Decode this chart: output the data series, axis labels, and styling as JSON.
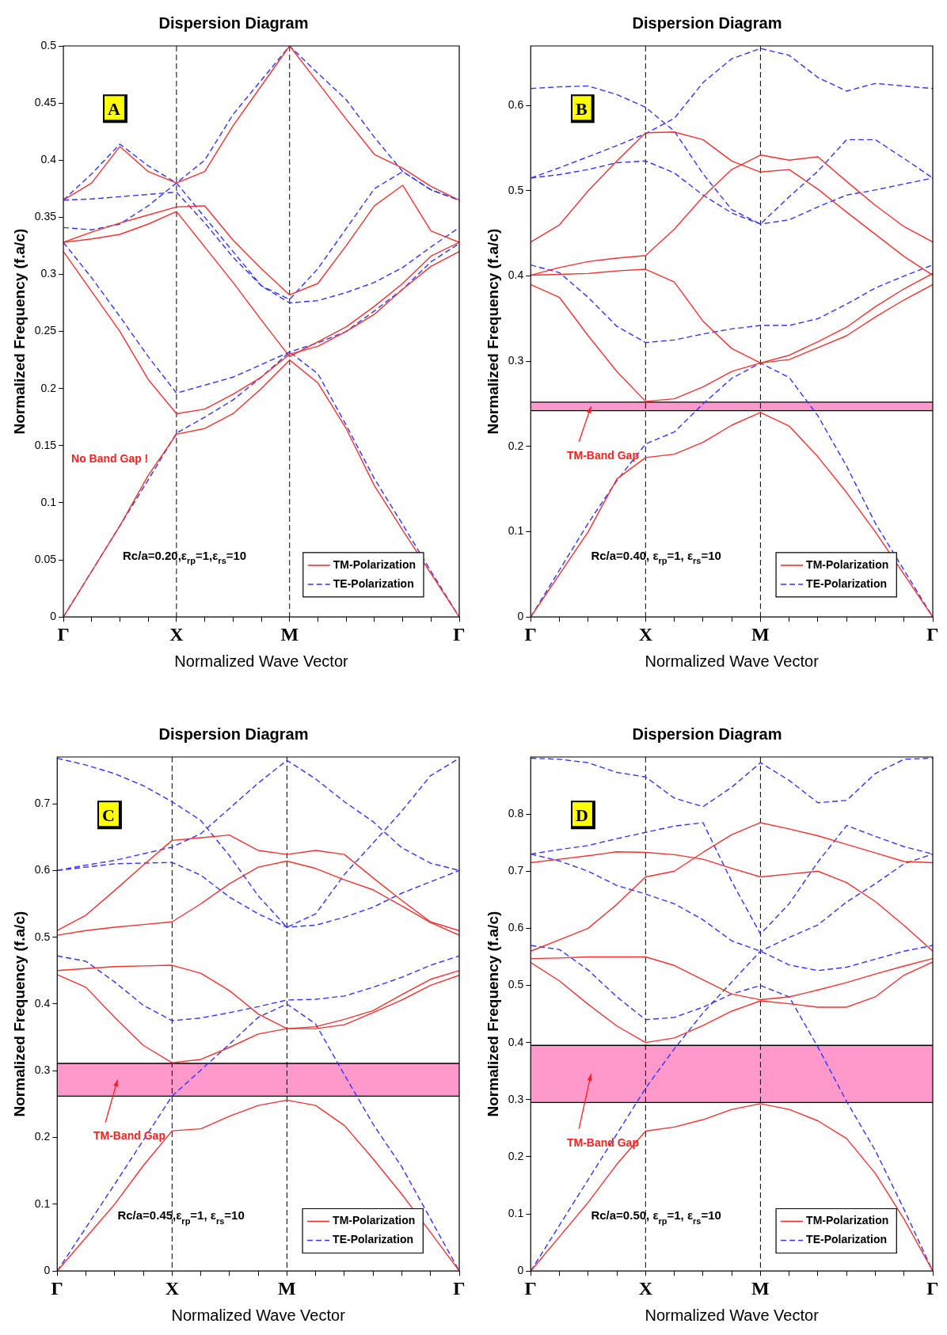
{
  "chart_data": [
    {
      "type": "line",
      "title": "Dispersion Diagram",
      "xlabel": "Normalized Wave Vector",
      "ylabel": "Normalized Frequency (f.a/c)",
      "categories": [
        "Γ",
        null,
        null,
        null,
        "X",
        null,
        null,
        null,
        "M",
        null,
        null,
        null,
        null,
        null,
        "Γ"
      ],
      "ylim": [
        0,
        0.5
      ],
      "yticks": [
        0,
        0.05,
        0.1,
        0.15,
        0.2,
        0.25,
        0.3,
        0.35,
        0.4,
        0.45,
        0.5
      ],
      "grid": false,
      "legend": "bottom right",
      "marker": "none",
      "ref_lines": [
        {
          "axis": "x",
          "value": "X",
          "color": "#000000",
          "line_style": "dashed"
        },
        {
          "axis": "x",
          "value": "M",
          "color": "#000000",
          "line_style": "dashed"
        }
      ],
      "annotations": [
        "A",
        "Rc/a=0.20,ε$_{rp}$=1,ε$_{rs}$=10",
        "No Band Gap !"
      ],
      "series": [
        {
          "name": "TM-Polarization",
          "color": "#ee3333",
          "line_style": "solid",
          "values": [
            0,
            0.04,
            0.08,
            0.124,
            0.16,
            0.165,
            0.178,
            0.2,
            0.225,
            0.205,
            0.165,
            0.115,
            0.076,
            0.038,
            0
          ]
        },
        {
          "color": "#ee3333",
          "line_style": "solid",
          "values": [
            0.32,
            0.285,
            0.25,
            0.208,
            0.178,
            0.182,
            0.195,
            0.21,
            0.23,
            0.237,
            0.25,
            0.265,
            0.287,
            0.307,
            0.32
          ]
        },
        {
          "color": "#ee3333",
          "line_style": "solid",
          "values": [
            0.328,
            0.331,
            0.335,
            0.344,
            0.355,
            0.324,
            0.293,
            0.26,
            0.228,
            0.241,
            0.254,
            0.272,
            0.292,
            0.316,
            0.328
          ]
        },
        {
          "color": "#ee3333",
          "line_style": "solid",
          "values": [
            0.328,
            0.337,
            0.345,
            0.352,
            0.359,
            0.36,
            0.33,
            0.305,
            0.282,
            0.292,
            0.325,
            0.36,
            0.378,
            0.338,
            0.328
          ]
        },
        {
          "color": "#ee3333",
          "line_style": "solid",
          "values": [
            0.365,
            0.38,
            0.412,
            0.39,
            0.38,
            0.39,
            0.43,
            0.465,
            0.5,
            0.468,
            0.436,
            0.405,
            0.393,
            0.377,
            0.365
          ]
        },
        {
          "name": "TE-Polarization",
          "color": "#3333ff",
          "line_style": "dashed",
          "values": [
            0,
            0.04,
            0.08,
            0.12,
            0.161,
            0.175,
            0.19,
            0.21,
            0.232,
            0.213,
            0.168,
            0.121,
            0.081,
            0.04,
            0
          ]
        },
        {
          "color": "#3333ff",
          "line_style": "dashed",
          "values": [
            0.328,
            0.297,
            0.263,
            0.228,
            0.196,
            0.203,
            0.21,
            0.221,
            0.232,
            0.24,
            0.25,
            0.268,
            0.287,
            0.311,
            0.327
          ]
        },
        {
          "color": "#3333ff",
          "line_style": "dashed",
          "values": [
            0.341,
            0.339,
            0.344,
            0.36,
            0.38,
            0.4,
            0.44,
            0.47,
            0.5,
            0.476,
            0.453,
            0.42,
            0.39,
            0.374,
            0.365
          ]
        },
        {
          "color": "#3333ff",
          "line_style": "dashed",
          "values": [
            0.365,
            0.388,
            0.414,
            0.395,
            0.38,
            0.35,
            0.32,
            0.29,
            0.278,
            0.305,
            0.34,
            0.375,
            0.39,
            0.374,
            0.365
          ]
        },
        {
          "color": "#3333ff",
          "line_style": "dashed",
          "values": [
            0.365,
            0.366,
            0.368,
            0.37,
            0.372,
            0.345,
            0.315,
            0.29,
            0.275,
            0.277,
            0.284,
            0.293,
            0.306,
            0.324,
            0.341
          ]
        }
      ]
    },
    {
      "type": "line",
      "title": "Dispersion Diagram",
      "xlabel": "Normalized Wave Vector",
      "ylabel": "Normalized Frequency (f.a/c)",
      "categories": [
        "Γ",
        null,
        null,
        null,
        "X",
        null,
        null,
        null,
        "M",
        null,
        null,
        null,
        null,
        null,
        "Γ"
      ],
      "ylim": [
        0,
        0.67
      ],
      "yticks": [
        0,
        0.1,
        0.2,
        0.3,
        0.4,
        0.5,
        0.6
      ],
      "grid": false,
      "legend": "bottom right",
      "marker": "none",
      "ref_lines": [
        {
          "axis": "x",
          "value": "X",
          "color": "#000000",
          "line_style": "dashed"
        },
        {
          "axis": "x",
          "value": "M",
          "color": "#000000",
          "line_style": "dashed"
        },
        {
          "axis": "y",
          "value": 0.242,
          "color": "#000000",
          "line_style": "solid"
        },
        {
          "axis": "y",
          "value": 0.252,
          "color": "#000000",
          "line_style": "solid"
        }
      ],
      "bands": [
        {
          "axis": "y",
          "from": 0.242,
          "to": 0.252,
          "label": "TM-Band Gap",
          "color": "#ff99cc"
        }
      ],
      "annotations": [
        "B",
        "Rc/a=0.40, ε$_{rp}$=1, ε$_{rs}$=10"
      ],
      "series": [
        {
          "name": "TM-Polarization",
          "color": "#ee3333",
          "line_style": "solid",
          "values": [
            0,
            0.05,
            0.1,
            0.162,
            0.187,
            0.191,
            0.205,
            0.225,
            0.24,
            0.224,
            0.188,
            0.146,
            0.1,
            0.05,
            0
          ]
        },
        {
          "color": "#ee3333",
          "line_style": "solid",
          "values": [
            0.39,
            0.375,
            0.33,
            0.288,
            0.253,
            0.256,
            0.27,
            0.288,
            0.298,
            0.302,
            0.316,
            0.33,
            0.352,
            0.372,
            0.39
          ]
        },
        {
          "color": "#ee3333",
          "line_style": "solid",
          "values": [
            0.401,
            0.402,
            0.403,
            0.406,
            0.408,
            0.393,
            0.347,
            0.315,
            0.298,
            0.307,
            0.323,
            0.34,
            0.364,
            0.385,
            0.403
          ]
        },
        {
          "color": "#ee3333",
          "line_style": "solid",
          "values": [
            0.401,
            0.41,
            0.417,
            0.421,
            0.424,
            0.455,
            0.493,
            0.525,
            0.542,
            0.536,
            0.54,
            0.511,
            0.483,
            0.458,
            0.44
          ]
        },
        {
          "color": "#ee3333",
          "line_style": "solid",
          "values": [
            0.44,
            0.46,
            0.5,
            0.535,
            0.568,
            0.569,
            0.56,
            0.535,
            0.522,
            0.525,
            0.502,
            0.475,
            0.449,
            0.423,
            0.401
          ]
        },
        {
          "name": "TE-Polarization",
          "color": "#3333ff",
          "line_style": "dashed",
          "values": [
            0,
            0.055,
            0.11,
            0.16,
            0.203,
            0.217,
            0.25,
            0.28,
            0.298,
            0.281,
            0.236,
            0.177,
            0.11,
            0.055,
            0
          ]
        },
        {
          "color": "#3333ff",
          "line_style": "dashed",
          "values": [
            0.413,
            0.404,
            0.375,
            0.341,
            0.322,
            0.325,
            0.332,
            0.338,
            0.342,
            0.342,
            0.35,
            0.367,
            0.386,
            0.4,
            0.413
          ]
        },
        {
          "color": "#3333ff",
          "line_style": "dashed",
          "values": [
            0.515,
            0.519,
            0.525,
            0.533,
            0.535,
            0.521,
            0.495,
            0.474,
            0.461,
            0.466,
            0.481,
            0.495,
            0.501,
            0.508,
            0.515
          ]
        },
        {
          "color": "#3333ff",
          "line_style": "dashed",
          "values": [
            0.515,
            0.527,
            0.54,
            0.553,
            0.567,
            0.585,
            0.627,
            0.655,
            0.667,
            0.659,
            0.633,
            0.617,
            0.626,
            0.623,
            0.62
          ]
        },
        {
          "color": "#3333ff",
          "line_style": "dashed",
          "values": [
            0.62,
            0.622,
            0.623,
            0.613,
            0.598,
            0.57,
            0.52,
            0.478,
            0.461,
            0.493,
            0.523,
            0.56,
            0.56,
            0.538,
            0.515
          ]
        }
      ]
    },
    {
      "type": "line",
      "title": "Dispersion Diagram",
      "xlabel": "Normalized Wave Vector",
      "ylabel": "Normalized Frequency (f.a/c)",
      "categories": [
        "Γ",
        null,
        null,
        null,
        "X",
        null,
        null,
        null,
        "M",
        null,
        null,
        null,
        null,
        null,
        "Γ"
      ],
      "ylim": [
        0,
        0.77
      ],
      "yticks": [
        0,
        0.1,
        0.2,
        0.3,
        0.4,
        0.5,
        0.6,
        0.7
      ],
      "grid": false,
      "legend": "bottom right",
      "marker": "none",
      "ref_lines": [
        {
          "axis": "x",
          "value": "X",
          "color": "#000000",
          "line_style": "dashed"
        },
        {
          "axis": "x",
          "value": "M",
          "color": "#000000",
          "line_style": "dashed"
        },
        {
          "axis": "y",
          "value": 0.262,
          "color": "#000000",
          "line_style": "solid"
        },
        {
          "axis": "y",
          "value": 0.311,
          "color": "#000000",
          "line_style": "solid"
        }
      ],
      "bands": [
        {
          "axis": "y",
          "from": 0.262,
          "to": 0.311,
          "label": "TM-Band Gap",
          "color": "#ff99cc"
        }
      ],
      "annotations": [
        "C",
        "Rc/a=0.45,ε$_{rp}$=1, ε$_{rs}$=10"
      ],
      "series": [
        {
          "name": "TM-Polarization",
          "color": "#ee3333",
          "line_style": "solid",
          "values": [
            0,
            0.05,
            0.1,
            0.158,
            0.21,
            0.213,
            0.232,
            0.248,
            0.256,
            0.248,
            0.218,
            0.168,
            0.115,
            0.058,
            0
          ]
        },
        {
          "color": "#ee3333",
          "line_style": "solid",
          "values": [
            0.444,
            0.425,
            0.38,
            0.338,
            0.312,
            0.317,
            0.335,
            0.355,
            0.363,
            0.363,
            0.369,
            0.387,
            0.406,
            0.428,
            0.443
          ]
        },
        {
          "color": "#ee3333",
          "line_style": "solid",
          "values": [
            0.45,
            0.453,
            0.456,
            0.457,
            0.458,
            0.446,
            0.42,
            0.385,
            0.363,
            0.366,
            0.377,
            0.39,
            0.414,
            0.437,
            0.45
          ]
        },
        {
          "color": "#ee3333",
          "line_style": "solid",
          "values": [
            0.503,
            0.51,
            0.515,
            0.519,
            0.523,
            0.55,
            0.58,
            0.605,
            0.614,
            0.603,
            0.586,
            0.571,
            0.547,
            0.522,
            0.503
          ]
        },
        {
          "color": "#ee3333",
          "line_style": "solid",
          "values": [
            0.51,
            0.533,
            0.57,
            0.608,
            0.645,
            0.649,
            0.653,
            0.63,
            0.624,
            0.63,
            0.624,
            0.589,
            0.555,
            0.523,
            0.51
          ]
        },
        {
          "name": "TE-Polarization",
          "color": "#3333ff",
          "line_style": "dashed",
          "values": [
            0,
            0.065,
            0.13,
            0.196,
            0.262,
            0.301,
            0.34,
            0.38,
            0.4,
            0.37,
            0.294,
            0.22,
            0.156,
            0.078,
            0
          ]
        },
        {
          "color": "#3333ff",
          "line_style": "dashed",
          "values": [
            0.472,
            0.464,
            0.433,
            0.398,
            0.375,
            0.379,
            0.387,
            0.396,
            0.406,
            0.407,
            0.412,
            0.425,
            0.44,
            0.458,
            0.472
          ]
        },
        {
          "color": "#3333ff",
          "line_style": "dashed",
          "values": [
            0.6,
            0.605,
            0.61,
            0.611,
            0.612,
            0.593,
            0.56,
            0.535,
            0.515,
            0.518,
            0.53,
            0.545,
            0.566,
            0.583,
            0.6
          ]
        },
        {
          "color": "#3333ff",
          "line_style": "dashed",
          "values": [
            0.6,
            0.608,
            0.615,
            0.625,
            0.635,
            0.655,
            0.693,
            0.731,
            0.765,
            0.737,
            0.703,
            0.673,
            0.634,
            0.611,
            0.6
          ]
        },
        {
          "color": "#3333ff",
          "line_style": "dashed",
          "values": [
            0.768,
            0.758,
            0.745,
            0.727,
            0.703,
            0.675,
            0.622,
            0.562,
            0.515,
            0.535,
            0.594,
            0.641,
            0.689,
            0.742,
            0.768
          ]
        }
      ]
    },
    {
      "type": "line",
      "title": "Dispersion Diagram",
      "xlabel": "Normalized Wave Vector",
      "ylabel": "Normalized Frequency (f.a/c)",
      "categories": [
        "Γ",
        null,
        null,
        null,
        "X",
        null,
        null,
        null,
        "M",
        null,
        null,
        null,
        null,
        null,
        "Γ"
      ],
      "ylim": [
        0,
        0.9
      ],
      "yticks": [
        0,
        0.1,
        0.2,
        0.3,
        0.4,
        0.5,
        0.6,
        0.7,
        0.8
      ],
      "grid": false,
      "legend": "bottom right",
      "marker": "none",
      "ref_lines": [
        {
          "axis": "x",
          "value": "X",
          "color": "#000000",
          "line_style": "dashed"
        },
        {
          "axis": "x",
          "value": "M",
          "color": "#000000",
          "line_style": "dashed"
        },
        {
          "axis": "y",
          "value": 0.295,
          "color": "#000000",
          "line_style": "solid"
        },
        {
          "axis": "y",
          "value": 0.395,
          "color": "#000000",
          "line_style": "solid"
        }
      ],
      "bands": [
        {
          "axis": "y",
          "from": 0.295,
          "to": 0.395,
          "label": "TM-Band Gap",
          "color": "#ff99cc"
        }
      ],
      "annotations": [
        "D",
        "Rc/a=0.50, ε$_{rp}$=1, ε$_{rs}$=10"
      ],
      "series": [
        {
          "name": "TM-Polarization",
          "color": "#ee3333",
          "line_style": "solid",
          "values": [
            0,
            0.06,
            0.12,
            0.187,
            0.245,
            0.252,
            0.265,
            0.283,
            0.293,
            0.283,
            0.263,
            0.232,
            0.171,
            0.091,
            0
          ]
        },
        {
          "color": "#ee3333",
          "line_style": "solid",
          "values": [
            0.54,
            0.508,
            0.467,
            0.429,
            0.4,
            0.408,
            0.43,
            0.455,
            0.473,
            0.468,
            0.462,
            0.462,
            0.48,
            0.518,
            0.541
          ]
        },
        {
          "color": "#ee3333",
          "line_style": "solid",
          "values": [
            0.547,
            0.548,
            0.55,
            0.55,
            0.55,
            0.535,
            0.51,
            0.485,
            0.475,
            0.48,
            0.492,
            0.505,
            0.52,
            0.534,
            0.547
          ]
        },
        {
          "color": "#ee3333",
          "line_style": "solid",
          "values": [
            0.56,
            0.58,
            0.6,
            0.642,
            0.69,
            0.7,
            0.733,
            0.764,
            0.785,
            0.774,
            0.762,
            0.747,
            0.732,
            0.717,
            0.715
          ]
        },
        {
          "color": "#ee3333",
          "line_style": "solid",
          "values": [
            0.715,
            0.721,
            0.727,
            0.734,
            0.733,
            0.729,
            0.721,
            0.705,
            0.69,
            0.695,
            0.7,
            0.68,
            0.647,
            0.605,
            0.56
          ]
        },
        {
          "name": "TE-Polarization",
          "color": "#3333ff",
          "line_style": "dashed",
          "values": [
            0,
            0.08,
            0.16,
            0.24,
            0.32,
            0.389,
            0.452,
            0.506,
            0.56,
            0.584,
            0.606,
            0.646,
            0.678,
            0.713,
            0.73
          ]
        },
        {
          "color": "#3333ff",
          "line_style": "dashed",
          "values": [
            0.57,
            0.563,
            0.527,
            0.48,
            0.44,
            0.444,
            0.462,
            0.485,
            0.5,
            0.48,
            0.392,
            0.297,
            0.211,
            0.108,
            0
          ]
        },
        {
          "color": "#3333ff",
          "line_style": "dashed",
          "values": [
            0.73,
            0.718,
            0.7,
            0.675,
            0.66,
            0.643,
            0.615,
            0.578,
            0.56,
            0.536,
            0.526,
            0.532,
            0.546,
            0.56,
            0.57
          ]
        },
        {
          "color": "#3333ff",
          "line_style": "dashed",
          "values": [
            0.73,
            0.738,
            0.745,
            0.757,
            0.768,
            0.779,
            0.785,
            0.682,
            0.59,
            0.643,
            0.716,
            0.78,
            0.761,
            0.743,
            0.73
          ]
        },
        {
          "color": "#3333ff",
          "line_style": "dashed",
          "values": [
            0.898,
            0.896,
            0.89,
            0.873,
            0.865,
            0.828,
            0.813,
            0.847,
            0.89,
            0.859,
            0.82,
            0.824,
            0.871,
            0.896,
            0.898
          ]
        }
      ]
    }
  ]
}
